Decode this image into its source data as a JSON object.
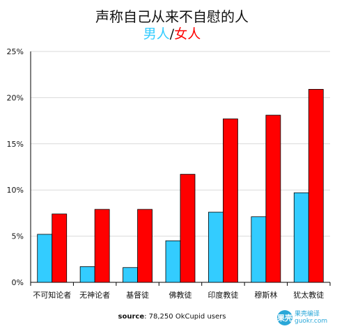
{
  "title": "声称自己从来不自慰的人",
  "subtitle": {
    "male": "男人",
    "separator": "/",
    "female": "女人"
  },
  "source": {
    "label": "source",
    "text": ": 78,250 OkCupid users"
  },
  "watermark": {
    "mark": "果壳",
    "line1": "果壳编译",
    "line2": "guokr.com"
  },
  "colors": {
    "male": "#33ccff",
    "female": "#ff0000",
    "grid": "#d9d9d9",
    "axis": "#000000"
  },
  "chart_data": {
    "type": "bar",
    "categories": [
      "不可知论者",
      "无神论者",
      "基督徒",
      "佛教徒",
      "印度教徒",
      "穆斯林",
      "犹太教徒"
    ],
    "series": [
      {
        "name": "男人",
        "values": [
          5.2,
          1.7,
          1.6,
          4.5,
          7.6,
          7.1,
          9.7
        ]
      },
      {
        "name": "女人",
        "values": [
          7.4,
          7.9,
          7.9,
          11.7,
          17.7,
          18.1,
          20.9
        ]
      }
    ],
    "ylim": [
      0,
      25
    ],
    "yticks": [
      "0%",
      "5%",
      "10%",
      "15%",
      "20%",
      "25%"
    ],
    "grid": true
  }
}
